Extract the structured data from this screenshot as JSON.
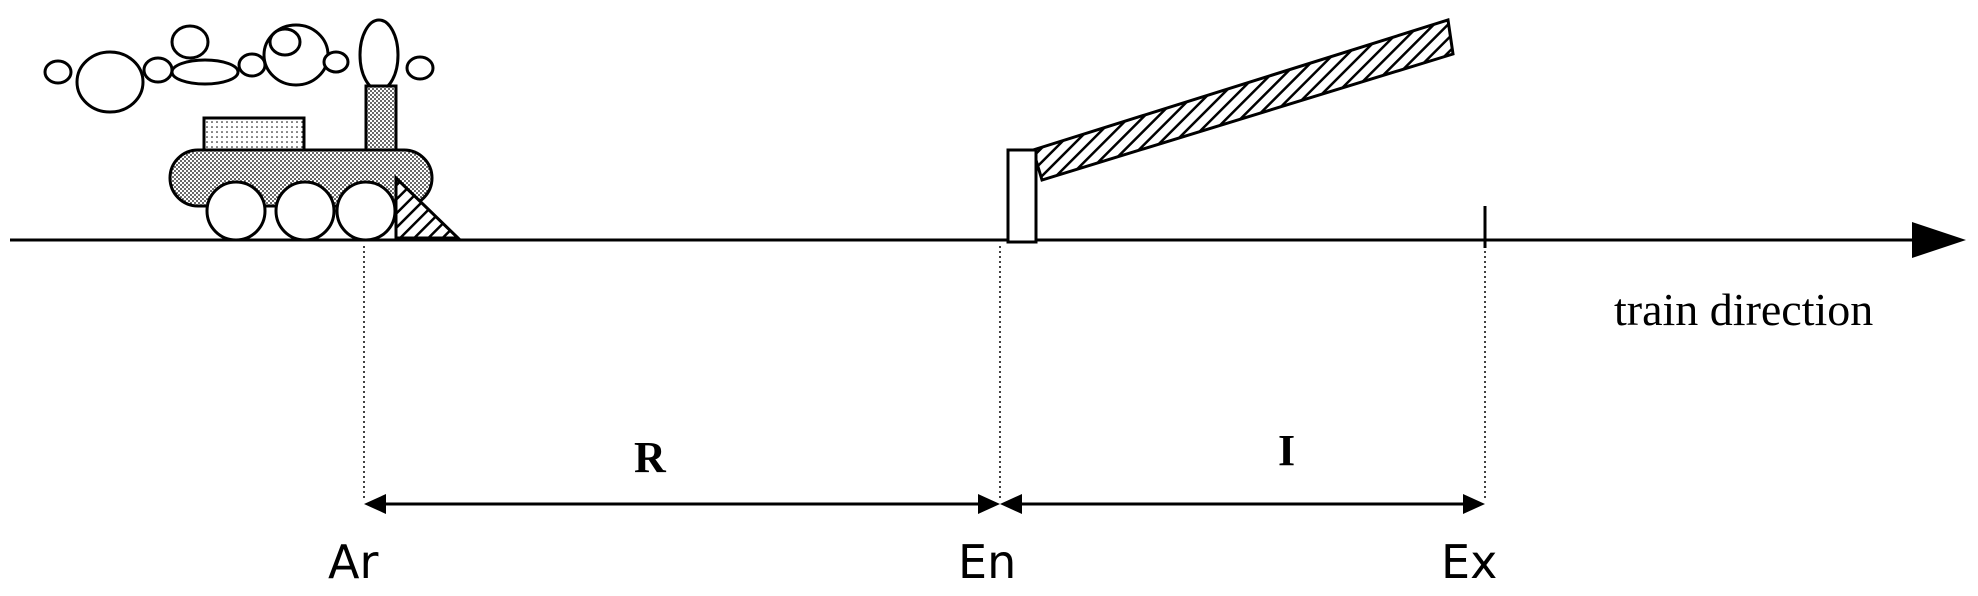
{
  "direction_label": "train direction",
  "segments": {
    "left_label": "R",
    "right_label": "I"
  },
  "points": {
    "arrival": "Ar",
    "entrance": "En",
    "exit": "Ex"
  },
  "icons": [
    "steam-train-icon",
    "crossing-barrier-icon"
  ],
  "colors": {
    "line": "#000000",
    "background": "#ffffff"
  }
}
